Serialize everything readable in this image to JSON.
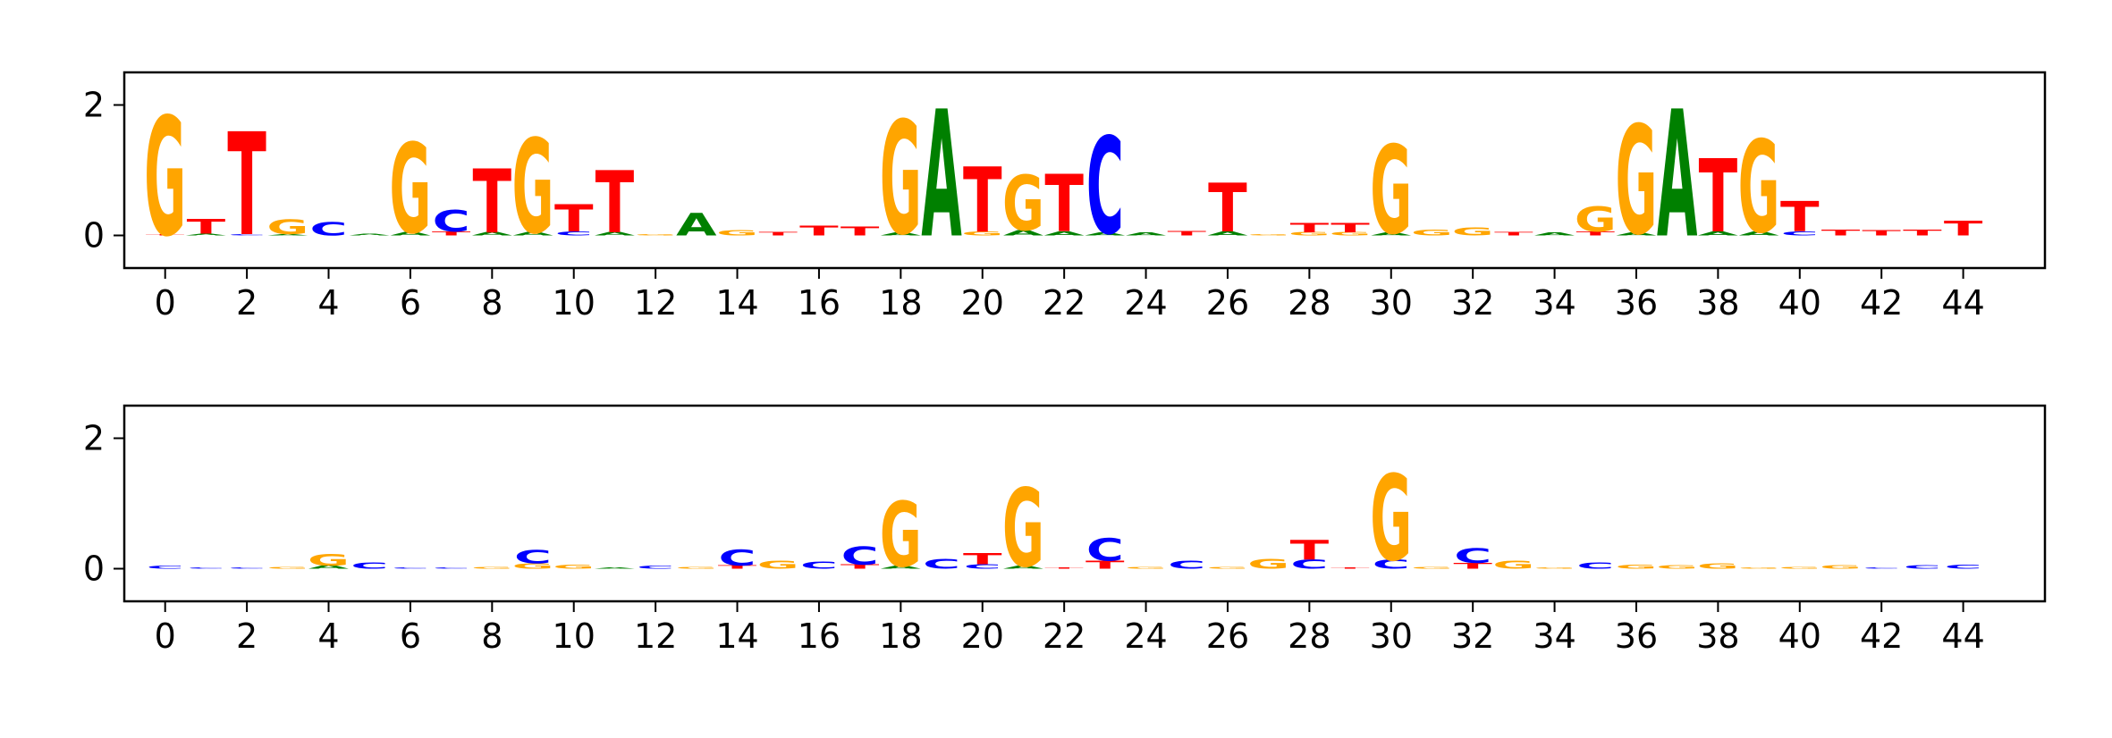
{
  "colors": {
    "A": "#008000",
    "C": "#0000ff",
    "G": "#ffa500",
    "T": "#ff0000",
    "axis": "#000000"
  },
  "chart_data": [
    {
      "type": "sequence-logo",
      "xlabel": "",
      "ylabel": "",
      "xlim": [
        -1,
        46
      ],
      "ylim": [
        -0.5,
        2.5
      ],
      "xticks": [
        "0",
        "2",
        "4",
        "6",
        "8",
        "10",
        "12",
        "14",
        "16",
        "18",
        "20",
        "22",
        "24",
        "26",
        "28",
        "30",
        "32",
        "34",
        "36",
        "38",
        "40",
        "42",
        "44"
      ],
      "yticks": [
        "0",
        "2"
      ],
      "positions": [
        {
          "x": 0,
          "letters": [
            [
              "T",
              0.02
            ],
            [
              "G",
              1.82
            ]
          ]
        },
        {
          "x": 1,
          "letters": [
            [
              "A",
              0.03
            ],
            [
              "T",
              0.22
            ]
          ]
        },
        {
          "x": 2,
          "letters": [
            [
              "C",
              0.02
            ],
            [
              "T",
              1.58
            ]
          ]
        },
        {
          "x": 3,
          "letters": [
            [
              "A",
              0.02
            ],
            [
              "G",
              0.22
            ]
          ]
        },
        {
          "x": 4,
          "letters": [
            [
              "C",
              0.2
            ]
          ]
        },
        {
          "x": 5,
          "letters": [
            [
              "A",
              0.03
            ]
          ]
        },
        {
          "x": 6,
          "letters": [
            [
              "A",
              0.05
            ],
            [
              "G",
              1.38
            ]
          ]
        },
        {
          "x": 7,
          "letters": [
            [
              "T",
              0.06
            ],
            [
              "C",
              0.33
            ]
          ]
        },
        {
          "x": 8,
          "letters": [
            [
              "A",
              0.05
            ],
            [
              "T",
              0.98
            ]
          ]
        },
        {
          "x": 9,
          "letters": [
            [
              "A",
              0.05
            ],
            [
              "G",
              1.45
            ]
          ]
        },
        {
          "x": 10,
          "letters": [
            [
              "C",
              0.06
            ],
            [
              "T",
              0.42
            ]
          ]
        },
        {
          "x": 11,
          "letters": [
            [
              "A",
              0.05
            ],
            [
              "T",
              0.95
            ]
          ]
        },
        {
          "x": 12,
          "letters": [
            [
              "G",
              0.02
            ]
          ]
        },
        {
          "x": 13,
          "letters": [
            [
              "A",
              0.35
            ]
          ]
        },
        {
          "x": 14,
          "letters": [
            [
              "G",
              0.08
            ]
          ]
        },
        {
          "x": 15,
          "letters": [
            [
              "T",
              0.05
            ]
          ]
        },
        {
          "x": 16,
          "letters": [
            [
              "T",
              0.15
            ]
          ]
        },
        {
          "x": 17,
          "letters": [
            [
              "T",
              0.13
            ]
          ]
        },
        {
          "x": 18,
          "letters": [
            [
              "A",
              0.04
            ],
            [
              "G",
              1.74
            ]
          ]
        },
        {
          "x": 19,
          "letters": [
            [
              "A",
              1.95
            ]
          ]
        },
        {
          "x": 20,
          "letters": [
            [
              "G",
              0.06
            ],
            [
              "T",
              1.0
            ]
          ]
        },
        {
          "x": 21,
          "letters": [
            [
              "A",
              0.08
            ],
            [
              "G",
              0.85
            ]
          ]
        },
        {
          "x": 22,
          "letters": [
            [
              "A",
              0.06
            ],
            [
              "T",
              0.88
            ]
          ]
        },
        {
          "x": 23,
          "letters": [
            [
              "A",
              0.04
            ],
            [
              "C",
              1.49
            ]
          ]
        },
        {
          "x": 24,
          "letters": [
            [
              "A",
              0.04
            ]
          ]
        },
        {
          "x": 25,
          "letters": [
            [
              "T",
              0.07
            ]
          ]
        },
        {
          "x": 26,
          "letters": [
            [
              "A",
              0.06
            ],
            [
              "T",
              0.75
            ]
          ]
        },
        {
          "x": 27,
          "letters": [
            [
              "G",
              0.02
            ]
          ]
        },
        {
          "x": 28,
          "letters": [
            [
              "G",
              0.05
            ],
            [
              "T",
              0.14
            ]
          ]
        },
        {
          "x": 29,
          "letters": [
            [
              "G",
              0.05
            ],
            [
              "T",
              0.14
            ]
          ]
        },
        {
          "x": 30,
          "letters": [
            [
              "A",
              0.04
            ],
            [
              "G",
              1.36
            ]
          ]
        },
        {
          "x": 31,
          "letters": [
            [
              "G",
              0.09
            ]
          ]
        },
        {
          "x": 32,
          "letters": [
            [
              "G",
              0.12
            ]
          ]
        },
        {
          "x": 33,
          "letters": [
            [
              "T",
              0.05
            ]
          ]
        },
        {
          "x": 34,
          "letters": [
            [
              "A",
              0.04
            ]
          ]
        },
        {
          "x": 35,
          "letters": [
            [
              "T",
              0.06
            ],
            [
              "G",
              0.38
            ]
          ]
        },
        {
          "x": 36,
          "letters": [
            [
              "A",
              0.04
            ],
            [
              "G",
              1.67
            ]
          ]
        },
        {
          "x": 37,
          "letters": [
            [
              "A",
              1.95
            ]
          ]
        },
        {
          "x": 38,
          "letters": [
            [
              "A",
              0.06
            ],
            [
              "T",
              1.12
            ]
          ]
        },
        {
          "x": 39,
          "letters": [
            [
              "A",
              0.06
            ],
            [
              "G",
              1.42
            ]
          ]
        },
        {
          "x": 40,
          "letters": [
            [
              "C",
              0.06
            ],
            [
              "T",
              0.46
            ]
          ]
        },
        {
          "x": 41,
          "letters": [
            [
              "T",
              0.09
            ]
          ]
        },
        {
          "x": 42,
          "letters": [
            [
              "T",
              0.08
            ]
          ]
        },
        {
          "x": 43,
          "letters": [
            [
              "T",
              0.09
            ]
          ]
        },
        {
          "x": 44,
          "letters": [
            [
              "T",
              0.22
            ]
          ]
        }
      ]
    },
    {
      "type": "sequence-logo",
      "xlabel": "",
      "ylabel": "",
      "xlim": [
        -1,
        46
      ],
      "ylim": [
        -0.5,
        2.5
      ],
      "xticks": [
        "0",
        "2",
        "4",
        "6",
        "8",
        "10",
        "12",
        "14",
        "16",
        "18",
        "20",
        "22",
        "24",
        "26",
        "28",
        "30",
        "32",
        "34",
        "36",
        "38",
        "40",
        "42",
        "44"
      ],
      "yticks": [
        "0",
        "2"
      ],
      "positions": [
        {
          "x": 0,
          "letters": [
            [
              "C",
              0.04
            ]
          ]
        },
        {
          "x": 1,
          "letters": [
            [
              "C",
              0.02
            ]
          ]
        },
        {
          "x": 2,
          "letters": [
            [
              "C",
              0.02
            ]
          ]
        },
        {
          "x": 3,
          "letters": [
            [
              "G",
              0.03
            ]
          ]
        },
        {
          "x": 4,
          "letters": [
            [
              "A",
              0.05
            ],
            [
              "G",
              0.18
            ]
          ]
        },
        {
          "x": 5,
          "letters": [
            [
              "C",
              0.1
            ]
          ]
        },
        {
          "x": 6,
          "letters": [
            [
              "C",
              0.02
            ]
          ]
        },
        {
          "x": 7,
          "letters": [
            [
              "C",
              0.02
            ]
          ]
        },
        {
          "x": 8,
          "letters": [
            [
              "G",
              0.03
            ]
          ]
        },
        {
          "x": 9,
          "letters": [
            [
              "G",
              0.08
            ],
            [
              "C",
              0.2
            ]
          ]
        },
        {
          "x": 10,
          "letters": [
            [
              "G",
              0.06
            ]
          ]
        },
        {
          "x": 11,
          "letters": [
            [
              "A",
              0.02
            ]
          ]
        },
        {
          "x": 12,
          "letters": [
            [
              "C",
              0.04
            ]
          ]
        },
        {
          "x": 13,
          "letters": [
            [
              "G",
              0.03
            ]
          ]
        },
        {
          "x": 14,
          "letters": [
            [
              "T",
              0.05
            ],
            [
              "C",
              0.25
            ]
          ]
        },
        {
          "x": 15,
          "letters": [
            [
              "G",
              0.12
            ]
          ]
        },
        {
          "x": 16,
          "letters": [
            [
              "C",
              0.11
            ]
          ]
        },
        {
          "x": 17,
          "letters": [
            [
              "T",
              0.07
            ],
            [
              "C",
              0.28
            ]
          ]
        },
        {
          "x": 18,
          "letters": [
            [
              "A",
              0.04
            ],
            [
              "G",
              1.0
            ]
          ]
        },
        {
          "x": 19,
          "letters": [
            [
              "C",
              0.15
            ]
          ]
        },
        {
          "x": 20,
          "letters": [
            [
              "C",
              0.07
            ],
            [
              "T",
              0.17
            ]
          ]
        },
        {
          "x": 21,
          "letters": [
            [
              "A",
              0.04
            ],
            [
              "G",
              1.2
            ]
          ]
        },
        {
          "x": 22,
          "letters": [
            [
              "T",
              0.02
            ]
          ]
        },
        {
          "x": 23,
          "letters": [
            [
              "T",
              0.12
            ],
            [
              "C",
              0.35
            ]
          ]
        },
        {
          "x": 24,
          "letters": [
            [
              "G",
              0.03
            ]
          ]
        },
        {
          "x": 25,
          "letters": [
            [
              "C",
              0.12
            ]
          ]
        },
        {
          "x": 26,
          "letters": [
            [
              "G",
              0.03
            ]
          ]
        },
        {
          "x": 27,
          "letters": [
            [
              "G",
              0.15
            ]
          ]
        },
        {
          "x": 28,
          "letters": [
            [
              "C",
              0.14
            ],
            [
              "T",
              0.3
            ]
          ]
        },
        {
          "x": 29,
          "letters": [
            [
              "T",
              0.02
            ]
          ]
        },
        {
          "x": 30,
          "letters": [
            [
              "C",
              0.14
            ],
            [
              "G",
              1.32
            ]
          ]
        },
        {
          "x": 31,
          "letters": [
            [
              "G",
              0.03
            ]
          ]
        },
        {
          "x": 32,
          "letters": [
            [
              "T",
              0.09
            ],
            [
              "C",
              0.22
            ]
          ]
        },
        {
          "x": 33,
          "letters": [
            [
              "G",
              0.12
            ]
          ]
        },
        {
          "x": 34,
          "letters": [
            [
              "G",
              0.02
            ]
          ]
        },
        {
          "x": 35,
          "letters": [
            [
              "C",
              0.1
            ]
          ]
        },
        {
          "x": 36,
          "letters": [
            [
              "G",
              0.06
            ]
          ]
        },
        {
          "x": 37,
          "letters": [
            [
              "G",
              0.05
            ]
          ]
        },
        {
          "x": 38,
          "letters": [
            [
              "G",
              0.08
            ]
          ]
        },
        {
          "x": 39,
          "letters": [
            [
              "G",
              0.02
            ]
          ]
        },
        {
          "x": 40,
          "letters": [
            [
              "G",
              0.03
            ]
          ]
        },
        {
          "x": 41,
          "letters": [
            [
              "G",
              0.05
            ]
          ]
        },
        {
          "x": 42,
          "letters": [
            [
              "C",
              0.02
            ]
          ]
        },
        {
          "x": 43,
          "letters": [
            [
              "C",
              0.05
            ]
          ]
        },
        {
          "x": 44,
          "letters": [
            [
              "C",
              0.06
            ]
          ]
        }
      ]
    }
  ]
}
